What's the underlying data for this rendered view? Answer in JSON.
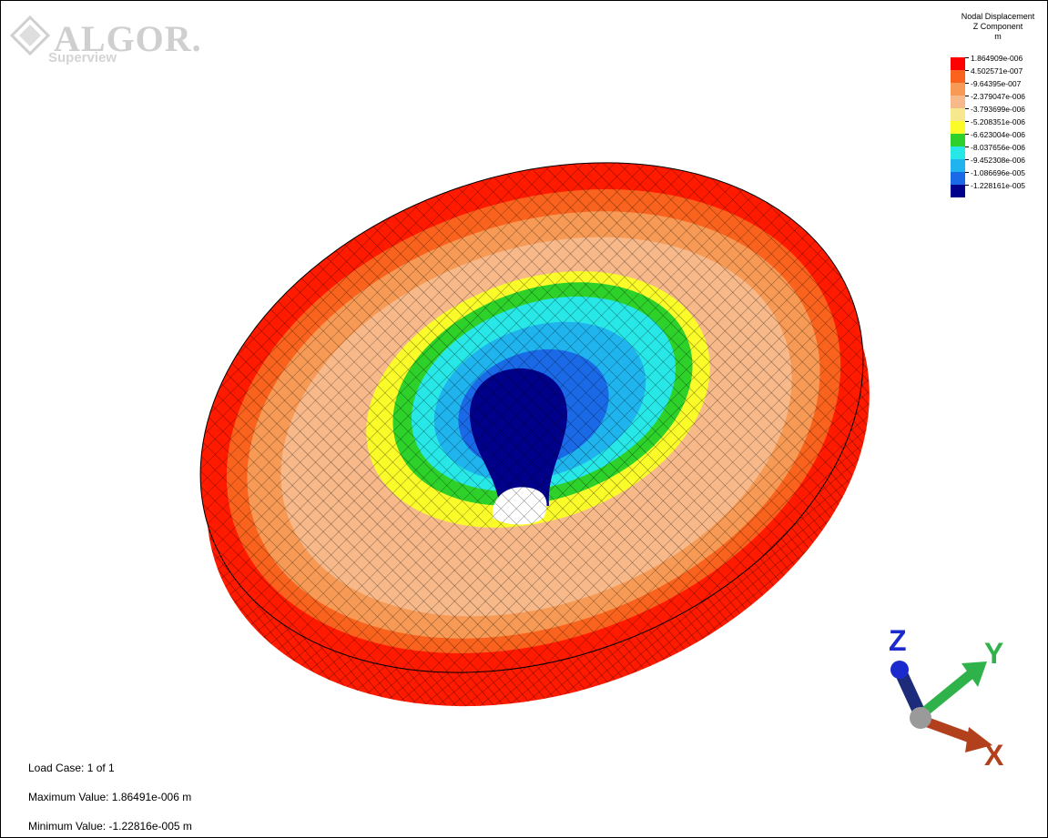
{
  "logo": {
    "brand": "ALGOR.",
    "product": "Superview"
  },
  "legend": {
    "title_line1": "Nodal Displacement",
    "title_line2": "Z Component",
    "title_line3": "m",
    "entries": [
      {
        "label": "1.864909e-006",
        "color": "#ff0000"
      },
      {
        "label": "4.502571e-007",
        "color": "#f9631d"
      },
      {
        "label": "-9.64395e-007",
        "color": "#f79a55"
      },
      {
        "label": "-2.379047e-006",
        "color": "#f7b98a"
      },
      {
        "label": "-3.793699e-006",
        "color": "#f6e88c"
      },
      {
        "label": "-5.208351e-006",
        "color": "#fbfb2a"
      },
      {
        "label": "-6.623004e-006",
        "color": "#2ed12a"
      },
      {
        "label": "-8.037656e-006",
        "color": "#28e7e7"
      },
      {
        "label": "-9.452308e-006",
        "color": "#1fb4ee"
      },
      {
        "label": "-1.086696e-005",
        "color": "#1a6ae8"
      },
      {
        "label": "-1.228161e-005",
        "color": "#00008a"
      }
    ]
  },
  "info": {
    "load_case": "Load Case:  1 of 1",
    "max_value": "Maximum Value: 1.86491e-006 m",
    "min_value": "Minimum Value: -1.22816e-005 m"
  },
  "triad": {
    "x_label": "X",
    "y_label": "Y",
    "z_label": "Z"
  }
}
